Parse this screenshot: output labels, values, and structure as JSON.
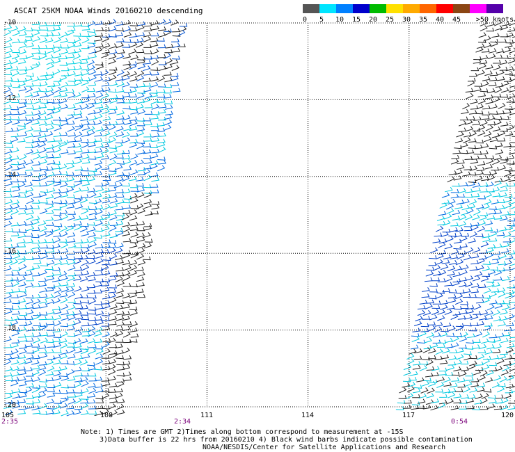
{
  "title": "ASCAT 25KM NOAA Winds 20160210 descending",
  "legend": {
    "labels": [
      "0",
      "5",
      "10",
      "15",
      "20",
      "25",
      "30",
      "35",
      "40",
      "45",
      ">50 knots"
    ],
    "colors": [
      "#555555",
      "#00e5ff",
      "#0080ff",
      "#0000cc",
      "#00bb00",
      "#ffe000",
      "#ffaa00",
      "#ff6600",
      "#ff0000",
      "#8b4513",
      "#ff00ff",
      "#5500aa"
    ]
  },
  "axes": {
    "lat_labels": [
      "-10",
      "-12",
      "-14",
      "-16",
      "-18",
      "-20"
    ],
    "lon_labels": [
      "105",
      "108",
      "111",
      "114",
      "117",
      "120"
    ]
  },
  "times": [
    "2:35",
    "2:34",
    "0:54"
  ],
  "notes": [
    "Note: 1) Times are GMT 2)Times along bottom correspond to measurement at -15S",
    "3)Data buffer is 22 hrs from 20160210 4) Black wind barbs indicate possible contamination",
    "NOAA/NESDIS/Center for Satellite Applications and Research"
  ]
}
